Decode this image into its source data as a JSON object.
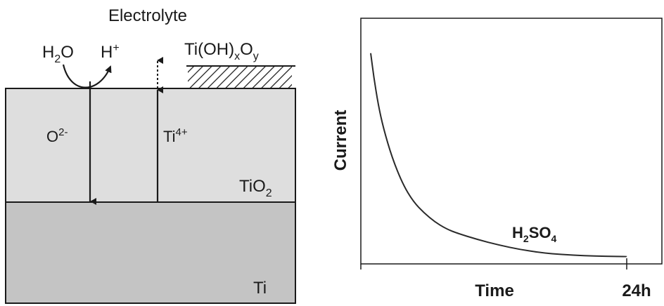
{
  "diagram": {
    "electrolyte_label": "Electrolyte",
    "water": {
      "main1": "H",
      "sub": "2",
      "main2": "O"
    },
    "proton": {
      "main": "H",
      "sup": "+"
    },
    "hydroxide": {
      "main1": "Ti(OH)",
      "sub1": "x",
      "main2": "O",
      "sub2": "y"
    },
    "oxide_ion": {
      "main": "O",
      "sup": "2-"
    },
    "titanium_ion": {
      "main": "Ti",
      "sup": "4+"
    },
    "oxide_layer": {
      "main": "TiO",
      "sub": "2"
    },
    "metal_layer": "Ti",
    "colors": {
      "oxide": "#dedede",
      "metal": "#c4c4c4",
      "stroke": "#1a1a1a"
    }
  },
  "chart": {
    "ylabel": "Current",
    "xlabel": "Time",
    "x_end_label": "24h",
    "annotation": {
      "main1": "H",
      "sub1": "2",
      "main2": "SO",
      "sub2": "4"
    },
    "curve_color": "#2a2a2a"
  },
  "chart_data": {
    "type": "line",
    "title": "",
    "xlabel": "Time",
    "ylabel": "Current",
    "x_end_label": "24h",
    "xlim": [
      0,
      24
    ],
    "ylim": [
      0,
      1
    ],
    "grid": false,
    "series": [
      {
        "name": "H2SO4",
        "x": [
          0,
          0.3,
          0.7,
          1.2,
          2,
          3,
          4,
          5,
          6,
          7,
          8,
          10,
          12,
          14,
          16,
          18,
          20,
          22,
          24
        ],
        "y": [
          0.95,
          0.84,
          0.72,
          0.61,
          0.48,
          0.36,
          0.28,
          0.23,
          0.19,
          0.16,
          0.14,
          0.11,
          0.085,
          0.065,
          0.05,
          0.042,
          0.037,
          0.034,
          0.033
        ]
      }
    ]
  }
}
